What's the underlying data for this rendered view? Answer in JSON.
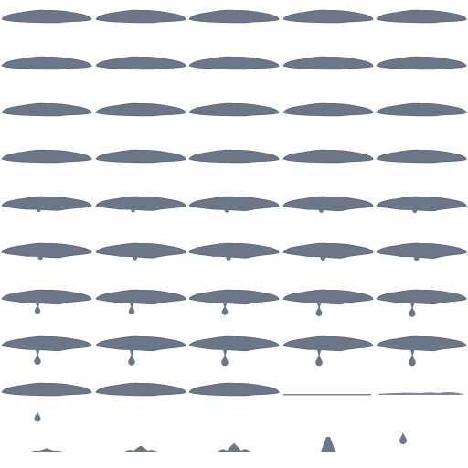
{
  "sprite_sheet": {
    "colors": {
      "background": "#ffffff",
      "fill": "#6b7789",
      "outline": "#5a6577",
      "shadow": "#7c879a"
    },
    "grid": {
      "columns": 5,
      "rows": 10
    },
    "frames": [
      {
        "phase": "idle"
      },
      {
        "phase": "idle"
      },
      {
        "phase": "idle"
      },
      {
        "phase": "idle"
      },
      {
        "phase": "idle"
      },
      {
        "phase": "idle"
      },
      {
        "phase": "idle"
      },
      {
        "phase": "idle"
      },
      {
        "phase": "idle"
      },
      {
        "phase": "idle"
      },
      {
        "phase": "idle"
      },
      {
        "phase": "idle"
      },
      {
        "phase": "idle"
      },
      {
        "phase": "idle"
      },
      {
        "phase": "idle"
      },
      {
        "phase": "idle"
      },
      {
        "phase": "idle"
      },
      {
        "phase": "idle"
      },
      {
        "phase": "idle"
      },
      {
        "phase": "idle"
      },
      {
        "phase": "bulge",
        "level": 0.15
      },
      {
        "phase": "bulge",
        "level": 0.2
      },
      {
        "phase": "bulge",
        "level": 0.25
      },
      {
        "phase": "bulge",
        "level": 0.3
      },
      {
        "phase": "bulge",
        "level": 0.35
      },
      {
        "phase": "bulge",
        "level": 0.4
      },
      {
        "phase": "bulge",
        "level": 0.45
      },
      {
        "phase": "bulge",
        "level": 0.5
      },
      {
        "phase": "bulge",
        "level": 0.55
      },
      {
        "phase": "bulge",
        "level": 0.6
      },
      {
        "phase": "drip",
        "level": 0.1
      },
      {
        "phase": "drip",
        "level": 0.15
      },
      {
        "phase": "drip",
        "level": 0.2
      },
      {
        "phase": "drip",
        "level": 0.3
      },
      {
        "phase": "drip",
        "level": 0.35
      },
      {
        "phase": "drip",
        "level": 0.45
      },
      {
        "phase": "drip",
        "level": 0.5
      },
      {
        "phase": "drip",
        "level": 0.55
      },
      {
        "phase": "drip",
        "level": 0.55
      },
      {
        "phase": "drip",
        "level": 0.55
      },
      {
        "phase": "fall",
        "level": 0.6
      },
      {
        "phase": "fall",
        "level": 0.0
      },
      {
        "phase": "fall",
        "level": 0.0
      },
      {
        "phase": "remnant",
        "level": 0.0
      },
      {
        "phase": "remnant",
        "level": 0.4
      },
      {
        "phase": "splash",
        "level": 0.2
      },
      {
        "phase": "splash",
        "level": 0.5
      },
      {
        "phase": "splash",
        "level": 0.8
      },
      {
        "phase": "spike",
        "level": 0.5
      },
      {
        "phase": "spike",
        "level": 1.0
      }
    ]
  }
}
